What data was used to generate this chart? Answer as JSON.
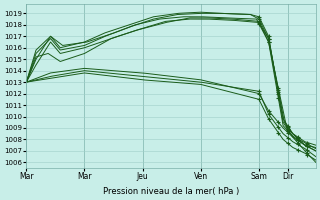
{
  "background_color": "#c8eee8",
  "grid_color": "#a0cfc8",
  "line_color": "#1a5c1a",
  "marker_color": "#1a5c1a",
  "ylabel_ticks": [
    1006,
    1007,
    1008,
    1009,
    1010,
    1011,
    1012,
    1013,
    1014,
    1015,
    1016,
    1017,
    1018,
    1019
  ],
  "xlabel": "Pression niveau de la mer( hPa )",
  "xtick_labels": [
    "Mar",
    "Mar",
    "Jeu",
    "Ven",
    "Sam",
    "Dir"
  ],
  "xtick_positions": [
    0,
    48,
    96,
    144,
    192,
    216
  ],
  "total_points": 240,
  "ylim": [
    1005.5,
    1019.8
  ],
  "xlim": [
    0,
    239
  ]
}
